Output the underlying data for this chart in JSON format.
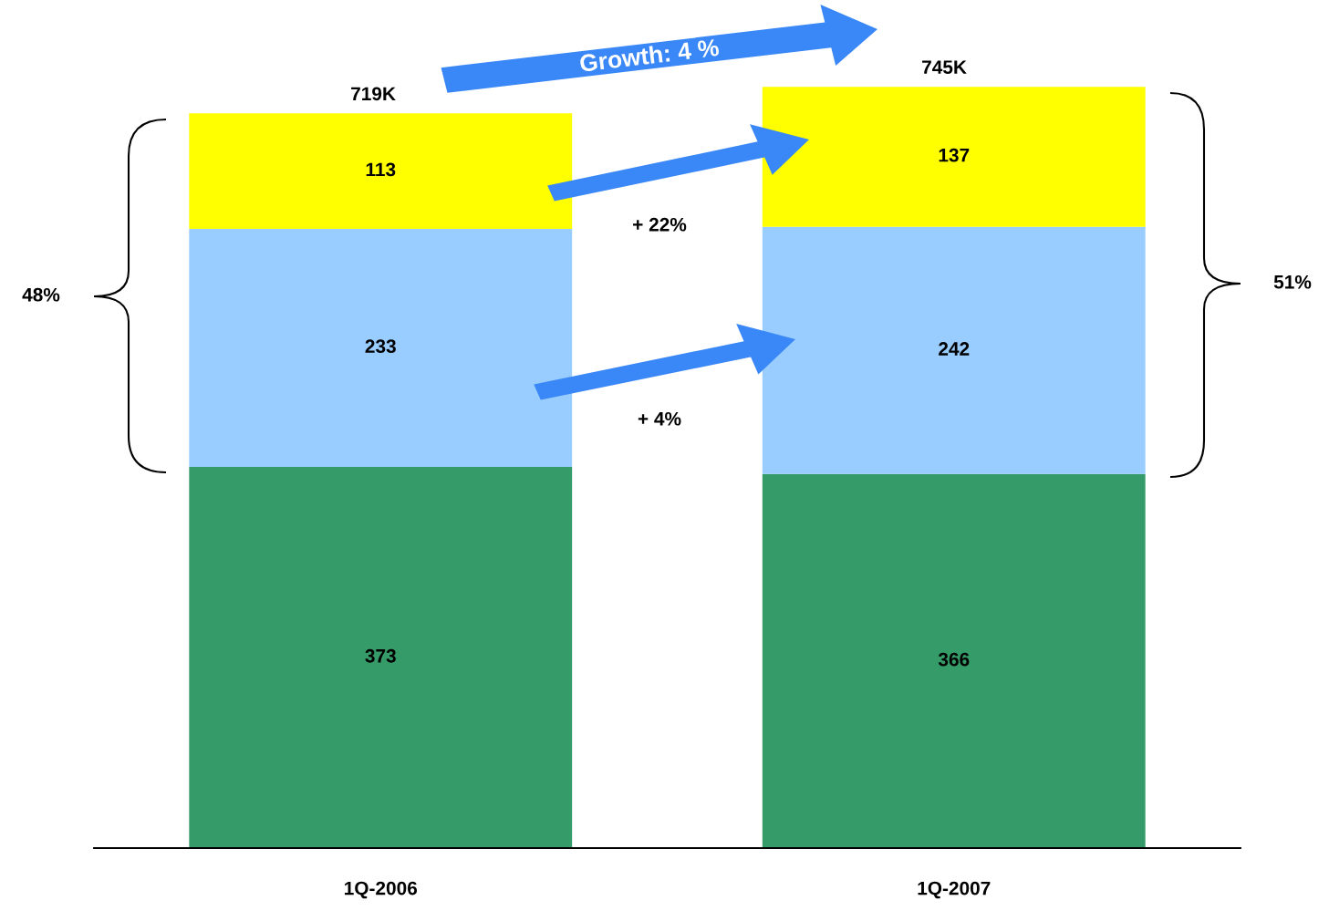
{
  "chart_data": {
    "type": "bar",
    "stacked": true,
    "categories": [
      "1Q-2006",
      "1Q-2007"
    ],
    "series": [
      {
        "color": "#359b68",
        "values": [
          373,
          366
        ]
      },
      {
        "color": "#99ccff",
        "values": [
          233,
          242
        ]
      },
      {
        "color": "#ffff00",
        "values": [
          113,
          137
        ]
      }
    ],
    "data_labels": true,
    "totals": [
      "719K",
      "745K"
    ],
    "annotations": [
      "Growth: 4 %",
      "+ 22%",
      "+ 4%",
      "48%",
      "51%"
    ]
  }
}
